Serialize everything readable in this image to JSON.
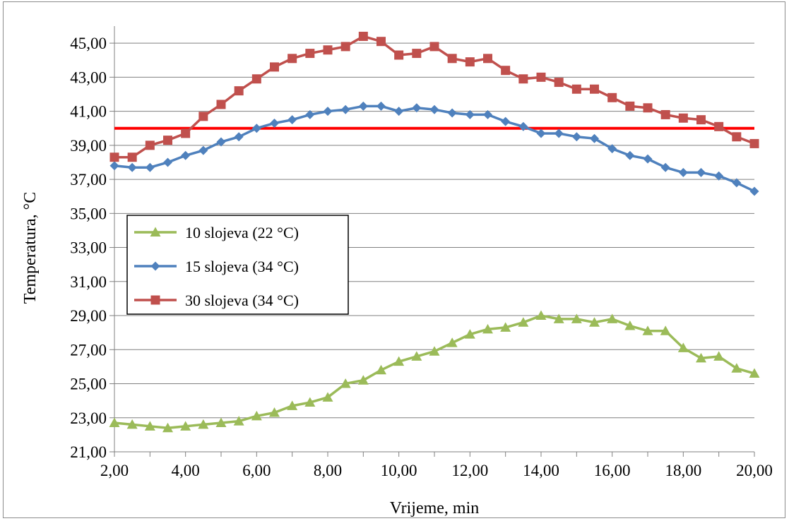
{
  "chart_data": {
    "type": "line",
    "xlabel": "Vrijeme, min",
    "ylabel": "Temperatura, °C",
    "xlim": [
      2,
      20
    ],
    "ylim": [
      21,
      46
    ],
    "grid": "horizontal",
    "legend_position": "middle-left",
    "x_ticks": [
      "2,00",
      "4,00",
      "6,00",
      "8,00",
      "10,00",
      "12,00",
      "14,00",
      "16,00",
      "18,00",
      "20,00"
    ],
    "y_ticks": [
      "21,00",
      "23,00",
      "25,00",
      "27,00",
      "29,00",
      "31,00",
      "33,00",
      "35,00",
      "37,00",
      "39,00",
      "41,00",
      "43,00",
      "45,00"
    ],
    "x": [
      2,
      2.5,
      3,
      3.5,
      4,
      4.5,
      5,
      5.5,
      6,
      6.5,
      7,
      7.5,
      8,
      8.5,
      9,
      9.5,
      10,
      10.5,
      11,
      11.5,
      12,
      12.5,
      13,
      13.5,
      14,
      14.5,
      15,
      15.5,
      16,
      16.5,
      17,
      17.5,
      18,
      18.5,
      19,
      19.5,
      20
    ],
    "series": [
      {
        "name": "10 slojeva (22 °C)",
        "color": "#9bbb59",
        "marker": "triangle",
        "values": [
          22.7,
          22.6,
          22.5,
          22.4,
          22.5,
          22.6,
          22.7,
          22.8,
          23.1,
          23.3,
          23.7,
          23.9,
          24.2,
          25.0,
          25.2,
          25.8,
          26.3,
          26.6,
          26.9,
          27.4,
          27.9,
          28.2,
          28.3,
          28.6,
          29.0,
          28.8,
          28.8,
          28.6,
          28.8,
          28.4,
          28.1,
          28.1,
          27.1,
          26.5,
          26.6,
          25.9,
          25.6
        ]
      },
      {
        "name": "15 slojeva (34 °C)",
        "color": "#4f81bd",
        "marker": "diamond",
        "values": [
          37.8,
          37.7,
          37.7,
          38.0,
          38.4,
          38.7,
          39.2,
          39.5,
          40.0,
          40.3,
          40.5,
          40.8,
          41.0,
          41.1,
          41.3,
          41.3,
          41.0,
          41.2,
          41.1,
          40.9,
          40.8,
          40.8,
          40.4,
          40.1,
          39.7,
          39.7,
          39.5,
          39.4,
          38.8,
          38.4,
          38.2,
          37.7,
          37.4,
          37.4,
          37.2,
          36.8,
          36.3
        ]
      },
      {
        "name": "30 slojeva (34 °C)",
        "color": "#c0504d",
        "marker": "square",
        "values": [
          38.3,
          38.3,
          39.0,
          39.3,
          39.7,
          40.7,
          41.4,
          42.2,
          42.9,
          43.6,
          44.1,
          44.4,
          44.6,
          44.8,
          45.4,
          45.1,
          44.3,
          44.4,
          44.8,
          44.1,
          43.9,
          44.1,
          43.4,
          42.9,
          43.0,
          42.7,
          42.3,
          42.3,
          41.8,
          41.3,
          41.2,
          40.8,
          40.6,
          40.5,
          40.1,
          39.5,
          39.1
        ]
      }
    ],
    "reference_line": {
      "y": 40.0,
      "color": "#ff0000"
    },
    "gridline_color": "#808080"
  }
}
